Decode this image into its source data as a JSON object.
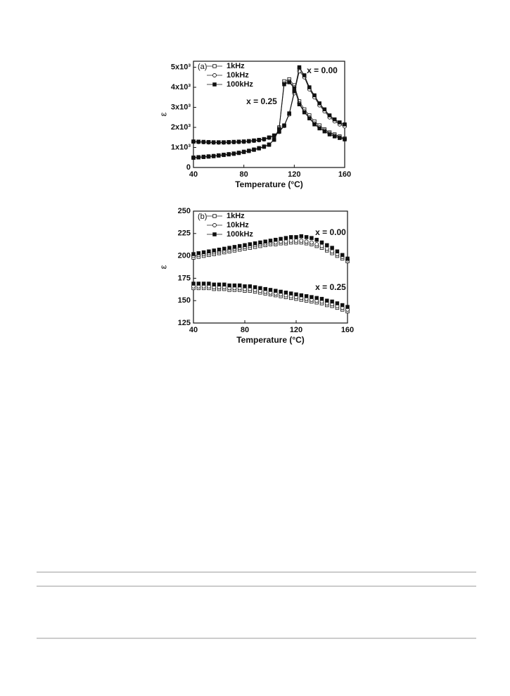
{
  "chart_data": [
    {
      "type": "scatter",
      "panel_label": "(a)",
      "xlabel": "Temperature (°C)",
      "ylabel": "ε",
      "lines": true,
      "x": [
        40,
        44,
        48,
        52,
        56,
        60,
        64,
        68,
        72,
        76,
        80,
        84,
        88,
        92,
        96,
        100,
        104,
        108,
        112,
        116,
        120,
        124,
        128,
        132,
        136,
        140,
        144,
        148,
        152,
        156,
        160
      ],
      "xlim": [
        40,
        160
      ],
      "xticks": [
        40,
        80,
        120,
        160
      ],
      "ylim": [
        0,
        5300
      ],
      "yticks": [
        0,
        {
          "value": 1000,
          "label": "1x10³"
        },
        {
          "value": 2000,
          "label": "2x10³"
        },
        {
          "value": 3000,
          "label": "3x10³"
        },
        {
          "value": 4000,
          "label": "4x10³"
        },
        {
          "value": 5000,
          "label": "5x10³"
        }
      ],
      "group_labels": [
        "x = 0.00",
        "x = 0.25"
      ],
      "series": [
        {
          "name": "1kHz",
          "marker": "open-square",
          "color": "#222222",
          "values": [
            [
              1290,
              1280,
              1270,
              1260,
              1250,
              1250,
              1250,
              1260,
              1270,
              1280,
              1290,
              1310,
              1340,
              1370,
              1410,
              1490,
              1590,
              1780,
              2080,
              2670,
              3750,
              4900,
              4550,
              3950,
              3550,
              3150,
              2850,
              2550,
              2350,
              2200,
              2100
            ],
            [
              500,
              520,
              540,
              560,
              580,
              610,
              640,
              670,
              700,
              740,
              790,
              840,
              900,
              970,
              1050,
              1150,
              1400,
              2000,
              4300,
              4400,
              4100,
              3300,
              2900,
              2600,
              2300,
              2100,
              1900,
              1750,
              1650,
              1550,
              1450
            ]
          ]
        },
        {
          "name": "10kHz",
          "marker": "open-circle",
          "color": "#222222",
          "values": [
            [
              1280,
              1270,
              1260,
              1250,
              1240,
              1240,
              1240,
              1250,
              1260,
              1270,
              1280,
              1300,
              1330,
              1360,
              1400,
              1480,
              1580,
              1770,
              2070,
              2650,
              3700,
              4800,
              4500,
              3900,
              3500,
              3100,
              2800,
              2500,
              2300,
              2150,
              2050
            ],
            [
              490,
              510,
              530,
              550,
              570,
              600,
              630,
              660,
              690,
              730,
              780,
              830,
              890,
              960,
              1040,
              1140,
              1390,
              1950,
              4200,
              4300,
              4000,
              3200,
              2800,
              2500,
              2200,
              2000,
              1850,
              1700,
              1600,
              1500,
              1420
            ]
          ]
        },
        {
          "name": "100kHz",
          "marker": "filled-square",
          "color": "#111111",
          "values": [
            [
              1300,
              1290,
              1280,
              1270,
              1260,
              1260,
              1260,
              1270,
              1280,
              1290,
              1300,
              1320,
              1350,
              1380,
              1420,
              1500,
              1600,
              1800,
              2100,
              2700,
              3800,
              5000,
              4600,
              4000,
              3600,
              3200,
              2900,
              2600,
              2400,
              2250,
              2150
            ],
            [
              480,
              500,
              520,
              540,
              560,
              590,
              620,
              650,
              680,
              720,
              770,
              820,
              880,
              950,
              1030,
              1130,
              1380,
              1900,
              4150,
              4250,
              3950,
              3150,
              2750,
              2450,
              2150,
              1950,
              1800,
              1650,
              1550,
              1470,
              1400
            ]
          ]
        }
      ]
    },
    {
      "type": "scatter",
      "panel_label": "(b)",
      "xlabel": "Temperature (°C)",
      "ylabel": "ε",
      "lines": false,
      "x": [
        40,
        44,
        48,
        52,
        56,
        60,
        64,
        68,
        72,
        76,
        80,
        84,
        88,
        92,
        96,
        100,
        104,
        108,
        112,
        116,
        120,
        124,
        128,
        132,
        136,
        140,
        144,
        148,
        152,
        156,
        160
      ],
      "xlim": [
        40,
        160
      ],
      "xticks": [
        40,
        80,
        120,
        160
      ],
      "ylim": [
        125,
        250
      ],
      "yticks": [
        125,
        150,
        175,
        200,
        225,
        250
      ],
      "group_labels": [
        "x = 0.00",
        "x = 0.25"
      ],
      "series": [
        {
          "name": "1kHz",
          "marker": "open-square",
          "color": "#222222",
          "values": [
            [
              198,
              199,
              200,
              201,
              202,
              203,
              204,
              205,
              206,
              207,
              208,
              209,
              210,
              211,
              212,
              213,
              213,
              214,
              214,
              215,
              215,
              215,
              214,
              213,
              211,
              209,
              206,
              203,
              200,
              197,
              194
            ],
            [
              164,
              164,
              164,
              164,
              163,
              163,
              163,
              162,
              162,
              162,
              161,
              161,
              160,
              159,
              158,
              157,
              156,
              155,
              154,
              153,
              152,
              151,
              150,
              149,
              148,
              147,
              145,
              144,
              142,
              140,
              138
            ]
          ]
        },
        {
          "name": "10kHz",
          "marker": "open-circle",
          "color": "#222222",
          "values": [
            [
              200,
              201,
              202,
              203,
              204,
              205,
              206,
              207,
              208,
              209,
              210,
              211,
              212,
              213,
              214,
              215,
              215,
              216,
              216,
              217,
              217,
              217,
              216,
              215,
              213,
              211,
              208,
              205,
              202,
              199,
              196
            ],
            [
              166,
              166,
              166,
              166,
              165,
              165,
              165,
              164,
              164,
              164,
              163,
              163,
              162,
              161,
              160,
              159,
              158,
              157,
              156,
              155,
              154,
              153,
              152,
              151,
              150,
              149,
              147,
              146,
              144,
              142,
              140
            ]
          ]
        },
        {
          "name": "100kHz",
          "marker": "filled-square",
          "color": "#111111",
          "values": [
            [
              202,
              203,
              204,
              205,
              206,
              207,
              208,
              209,
              210,
              211,
              212,
              213,
              214,
              215,
              216,
              217,
              218,
              219,
              220,
              221,
              221,
              222,
              221,
              220,
              218,
              215,
              212,
              209,
              205,
              201,
              197
            ],
            [
              169,
              169,
              169,
              169,
              168,
              168,
              168,
              167,
              167,
              167,
              166,
              166,
              165,
              164,
              163,
              162,
              161,
              160,
              159,
              158,
              157,
              156,
              155,
              154,
              153,
              152,
              150,
              149,
              147,
              145,
              143
            ]
          ]
        }
      ]
    }
  ]
}
